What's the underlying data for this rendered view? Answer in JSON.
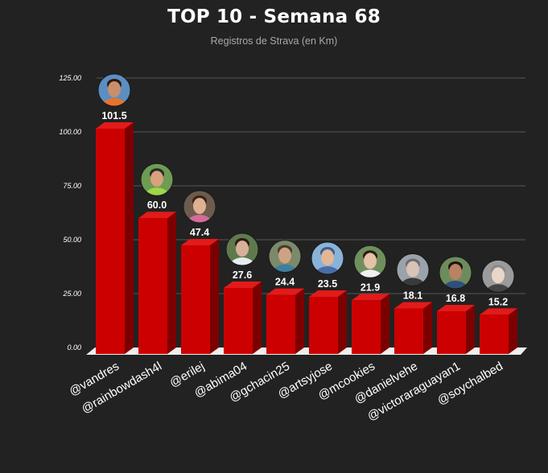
{
  "chart_data": {
    "type": "bar",
    "title": "TOP 10 - Semana 68",
    "subtitle": "Registros de Strava (en Km)",
    "categories": [
      "@vandres",
      "@rainbowdash4l",
      "@erilej",
      "@abima04",
      "@gchacin25",
      "@artsyjose",
      "@mcookies",
      "@danielvehe",
      "@victoraraguayan1",
      "@soychalbed"
    ],
    "values": [
      101.5,
      60.0,
      47.4,
      27.6,
      24.4,
      23.5,
      21.9,
      18.1,
      16.8,
      15.2
    ],
    "value_labels": [
      "101.5",
      "60.0",
      "47.4",
      "27.6",
      "24.4",
      "23.5",
      "21.9",
      "18.1",
      "16.8",
      "15.2"
    ],
    "ylim": [
      0,
      125
    ],
    "yticks": [
      "0.00",
      "25.00",
      "50.00",
      "75.00",
      "100.00",
      "125.00"
    ],
    "grid": true,
    "legend": "none",
    "colors": {
      "background": "#222222",
      "bar_front": "#cc0000",
      "bar_side": "#7d0000",
      "bar_top": "#e31a1a",
      "grid": "#555555",
      "floor": "#eeeeee",
      "text": "#ffffff"
    },
    "avatars": [
      {
        "skin": "#c98f6b",
        "bg": "#5b8fc2",
        "shirt": "#e8732a",
        "hair": "#2a1b12"
      },
      {
        "skin": "#d9a17c",
        "bg": "#6e9c54",
        "shirt": "#9fd64a",
        "hair": "#2b2b2b"
      },
      {
        "skin": "#e0b093",
        "bg": "#6d5b4d",
        "shirt": "#d46b9a",
        "hair": "#3a2416"
      },
      {
        "skin": "#d8b09a",
        "bg": "#5e7a4d",
        "shirt": "#e8ecef",
        "hair": "#2a1d14"
      },
      {
        "skin": "#cfa285",
        "bg": "#7a8a6b",
        "shirt": "#3e7fa0",
        "hair": "#4a3a2a"
      },
      {
        "skin": "#e2b796",
        "bg": "#8ab3d8",
        "shirt": "#4a6da8",
        "hair": "#3d5e90"
      },
      {
        "skin": "#e5c1a6",
        "bg": "#6f8f5d",
        "shirt": "#f1f1f1",
        "hair": "#2c1d14"
      },
      {
        "skin": "#d9c3b5",
        "bg": "#9aa3ab",
        "shirt": "#3a3a3a",
        "hair": "#6d6d6d"
      },
      {
        "skin": "#b98263",
        "bg": "#6d8c5c",
        "shirt": "#2f4f7a",
        "hair": "#1f1410"
      },
      {
        "skin": "#ead6c8",
        "bg": "#9b9b9b",
        "shirt": "#444444",
        "hair": "#8a8a8a"
      }
    ]
  }
}
